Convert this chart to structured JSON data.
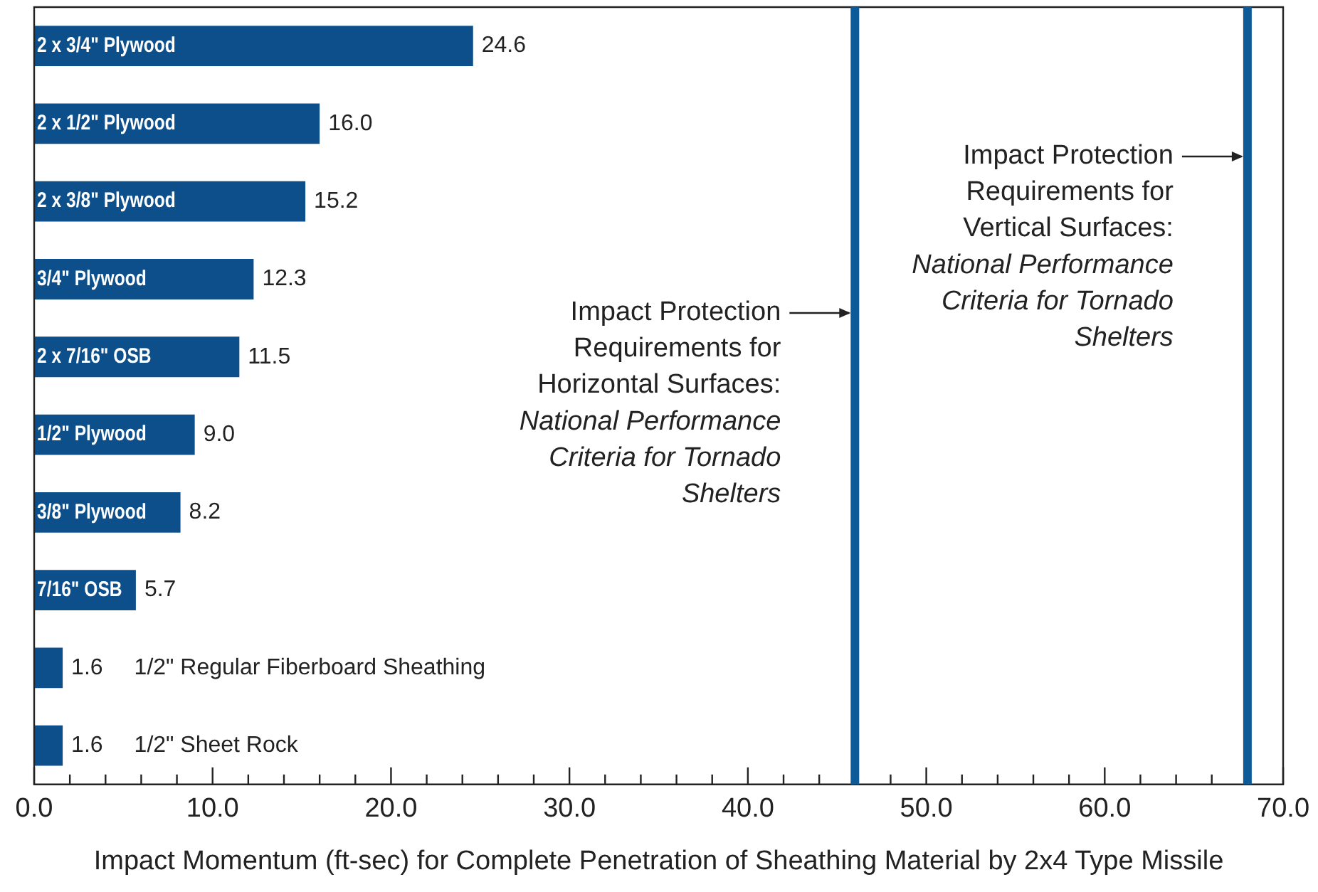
{
  "chart_data": {
    "type": "bar",
    "orientation": "horizontal",
    "xlabel": "Impact Momentum (ft-sec) for Complete Penetration of Sheathing Material by 2x4 Type Missile",
    "categories": [
      "2 x 3/4\" Plywood",
      "2 x 1/2\" Plywood",
      "2 x 3/8\" Plywood",
      "3/4\" Plywood",
      "2 x 7/16\" OSB",
      "1/2\" Plywood",
      "3/8\" Plywood",
      "7/16\" OSB",
      "1/2\" Regular Fiberboard Sheathing",
      "1/2\" Sheet Rock"
    ],
    "values": [
      24.6,
      16.0,
      15.2,
      12.3,
      11.5,
      9.0,
      8.2,
      5.7,
      1.6,
      1.6
    ],
    "value_labels": [
      "24.6",
      "16.0",
      "15.2",
      "12.3",
      "11.5",
      "9.0",
      "8.2",
      "5.7",
      "1.6",
      "1.6"
    ],
    "color": "#0d4f8b",
    "xlim": [
      0,
      70
    ],
    "xticks": [
      "0.0",
      "10.0",
      "20.0",
      "30.0",
      "40.0",
      "50.0",
      "60.0",
      "70.0"
    ],
    "ref_lines": [
      {
        "axis": "x",
        "value": 46,
        "label": "Impact Protection Requirements for Horizontal Surfaces: National Performance Criteria for Tornado Shelters",
        "color": "#0d5a99"
      },
      {
        "axis": "x",
        "value": 68,
        "label": "Impact Protection Requirements for Vertical Surfaces: National Performance Criteria for Tornado Shelters",
        "color": "#0d5a99"
      }
    ],
    "grid": false,
    "legend": false
  }
}
